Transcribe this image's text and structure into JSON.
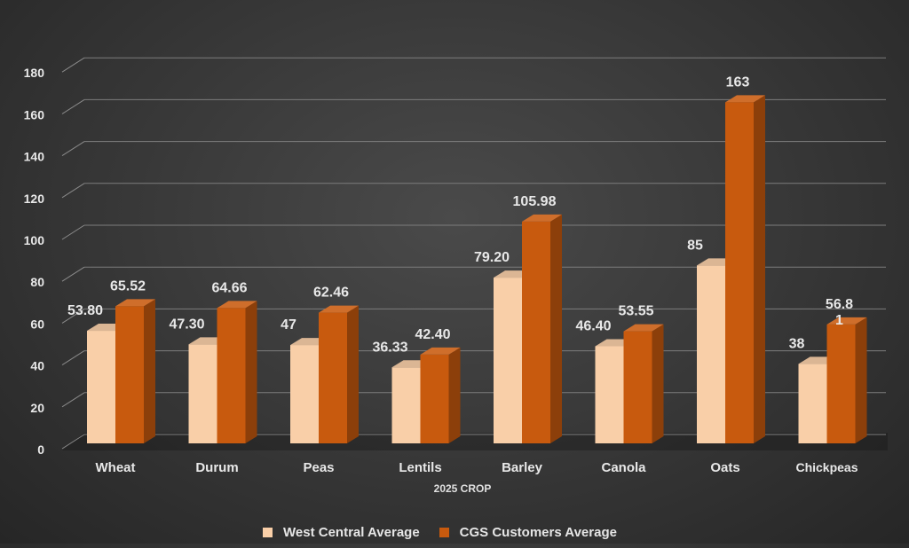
{
  "chart_data": {
    "type": "bar",
    "title": "",
    "xlabel": "2025 CROP",
    "ylabel": "",
    "ylim": [
      0,
      180
    ],
    "yticks": [
      0,
      20,
      40,
      60,
      80,
      100,
      120,
      140,
      160,
      180
    ],
    "categories": [
      "Wheat",
      "Durum",
      "Peas",
      "Lentils",
      "Barley",
      "Canola",
      "Oats",
      "Chickpeas"
    ],
    "grid": true,
    "legend_position": "bottom",
    "series": [
      {
        "name": "West Central Average",
        "color": "#f9cfa8",
        "values": [
          53.8,
          47.3,
          47,
          36.33,
          79.2,
          46.4,
          85,
          38
        ],
        "labels": [
          "53.80",
          "47.30",
          "47",
          "36.33",
          "79.20",
          "46.40",
          "85",
          "38"
        ]
      },
      {
        "name": "CGS Customers Average",
        "color": "#c85a0e",
        "values": [
          65.52,
          64.66,
          62.46,
          42.4,
          105.98,
          53.55,
          163,
          56.81
        ],
        "labels": [
          "65.52",
          "64.66",
          "62.46",
          "42.40",
          "105.98",
          "53.55",
          "163",
          "56.8\n1"
        ]
      }
    ]
  }
}
